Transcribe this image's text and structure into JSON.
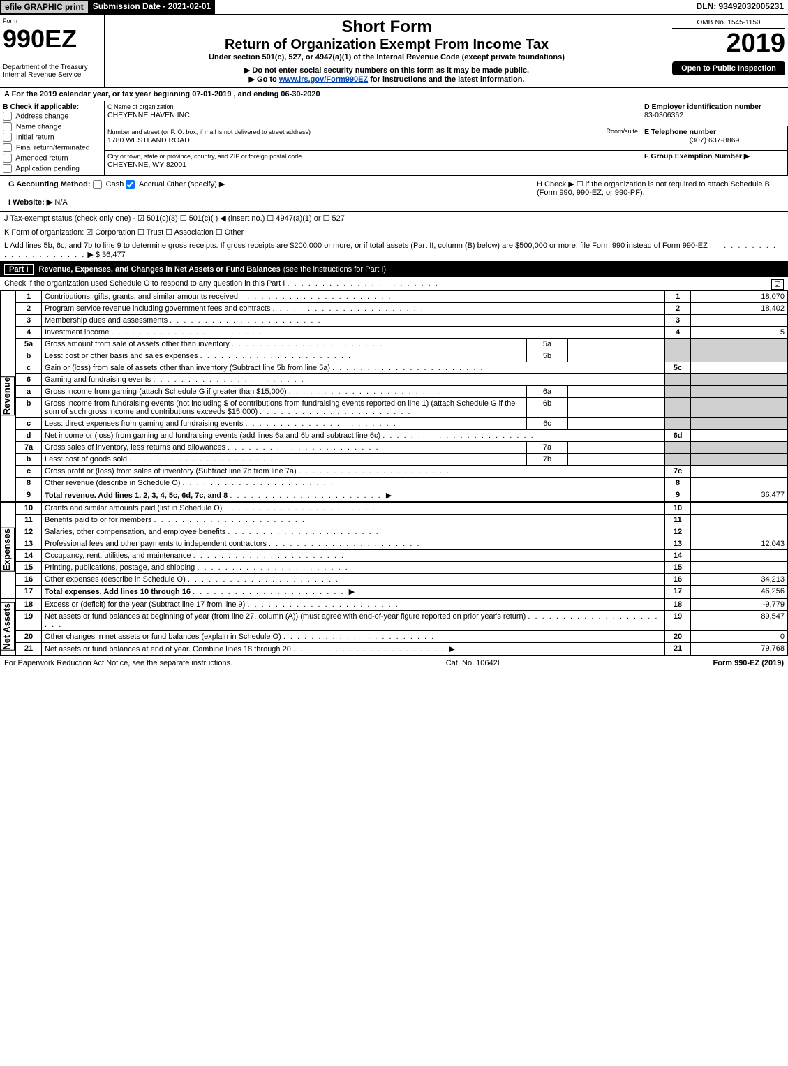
{
  "topbar": {
    "efile": "efile GRAPHIC print",
    "submission": "Submission Date - 2021-02-01",
    "dln": "DLN: 93492032005231"
  },
  "header": {
    "form_word": "Form",
    "form_number": "990EZ",
    "dept": "Department of the Treasury",
    "irs": "Internal Revenue Service",
    "title1": "Short Form",
    "title2": "Return of Organization Exempt From Income Tax",
    "subtitle": "Under section 501(c), 527, or 4947(a)(1) of the Internal Revenue Code (except private foundations)",
    "note1": "▶ Do not enter social security numbers on this form as it may be made public.",
    "note2_pre": "▶ Go to ",
    "note2_link": "www.irs.gov/Form990EZ",
    "note2_post": " for instructions and the latest information.",
    "omb": "OMB No. 1545-1150",
    "year": "2019",
    "open_public": "Open to Public Inspection"
  },
  "section_a": {
    "label": "A For the 2019 calendar year, or tax year beginning 07-01-2019 , and ending 06-30-2020"
  },
  "section_b": {
    "label": "B Check if applicable:",
    "items": [
      "Address change",
      "Name change",
      "Initial return",
      "Final return/terminated",
      "Amended return",
      "Application pending"
    ]
  },
  "section_c": {
    "name_label": "C Name of organization",
    "name": "CHEYENNE HAVEN INC",
    "addr_label": "Number and street (or P. O. box, if mail is not delivered to street address)",
    "room_label": "Room/suite",
    "addr": "1780 WESTLAND ROAD",
    "city_label": "City or town, state or province, country, and ZIP or foreign postal code",
    "city": "CHEYENNE, WY  82001"
  },
  "section_d": {
    "label": "D Employer identification number",
    "value": "83-0306362"
  },
  "section_e": {
    "label": "E Telephone number",
    "value": "(307) 637-8869"
  },
  "section_f": {
    "label": "F Group Exemption Number  ▶",
    "value": ""
  },
  "section_g": {
    "label": "G Accounting Method:",
    "cash": "Cash",
    "accrual": "Accrual",
    "other": "Other (specify) ▶"
  },
  "section_h": {
    "text": "H  Check ▶  ☐  if the organization is not required to attach Schedule B (Form 990, 990-EZ, or 990-PF)."
  },
  "section_i": {
    "label": "I Website: ▶",
    "value": "N/A"
  },
  "section_j": {
    "label": "J Tax-exempt status (check only one) - ☑ 501(c)(3) ☐ 501(c)(  ) ◀ (insert no.) ☐ 4947(a)(1) or ☐ 527"
  },
  "section_k": {
    "label": "K Form of organization:  ☑ Corporation  ☐ Trust  ☐ Association  ☐ Other"
  },
  "section_l": {
    "text": "L Add lines 5b, 6c, and 7b to line 9 to determine gross receipts. If gross receipts are $200,000 or more, or if total assets (Part II, column (B) below) are $500,000 or more, file Form 990 instead of Form 990-EZ",
    "amount_label": "▶ $",
    "amount": " 36,477"
  },
  "part1": {
    "tag": "Part I",
    "title": "Revenue, Expenses, and Changes in Net Assets or Fund Balances",
    "subtitle": "(see the instructions for Part I)",
    "check_line": "Check if the organization used Schedule O to respond to any question in this Part I",
    "check_mark": "☑",
    "sections": {
      "revenue": "Revenue",
      "expenses": "Expenses",
      "netassets": "Net Assets"
    },
    "lines": [
      {
        "n": "1",
        "text": "Contributions, gifts, grants, and similar amounts received",
        "rn": "1",
        "amt": "18,070"
      },
      {
        "n": "2",
        "text": "Program service revenue including government fees and contracts",
        "rn": "2",
        "amt": "18,402"
      },
      {
        "n": "3",
        "text": "Membership dues and assessments",
        "rn": "3",
        "amt": ""
      },
      {
        "n": "4",
        "text": "Investment income",
        "rn": "4",
        "amt": "5"
      },
      {
        "n": "5a",
        "text": "Gross amount from sale of assets other than inventory",
        "sub": "5a",
        "subamt": "",
        "shade": true
      },
      {
        "n": "b",
        "text": "Less: cost or other basis and sales expenses",
        "sub": "5b",
        "subamt": "",
        "shade": true
      },
      {
        "n": "c",
        "text": "Gain or (loss) from sale of assets other than inventory (Subtract line 5b from line 5a)",
        "rn": "5c",
        "amt": ""
      },
      {
        "n": "6",
        "text": "Gaming and fundraising events",
        "shade_full": true
      },
      {
        "n": "a",
        "text": "Gross income from gaming (attach Schedule G if greater than $15,000)",
        "sub": "6a",
        "subamt": "",
        "shade": true
      },
      {
        "n": "b",
        "text": "Gross income from fundraising events (not including $                of contributions from fundraising events reported on line 1) (attach Schedule G if the sum of such gross income and contributions exceeds $15,000)",
        "sub": "6b",
        "subamt": "",
        "shade": true
      },
      {
        "n": "c",
        "text": "Less: direct expenses from gaming and fundraising events",
        "sub": "6c",
        "subamt": "",
        "shade": true
      },
      {
        "n": "d",
        "text": "Net income or (loss) from gaming and fundraising events (add lines 6a and 6b and subtract line 6c)",
        "rn": "6d",
        "amt": ""
      },
      {
        "n": "7a",
        "text": "Gross sales of inventory, less returns and allowances",
        "sub": "7a",
        "subamt": "",
        "shade": true
      },
      {
        "n": "b",
        "text": "Less: cost of goods sold",
        "sub": "7b",
        "subamt": "",
        "shade": true
      },
      {
        "n": "c",
        "text": "Gross profit or (loss) from sales of inventory (Subtract line 7b from line 7a)",
        "rn": "7c",
        "amt": ""
      },
      {
        "n": "8",
        "text": "Other revenue (describe in Schedule O)",
        "rn": "8",
        "amt": ""
      },
      {
        "n": "9",
        "text": "Total revenue. Add lines 1, 2, 3, 4, 5c, 6d, 7c, and 8",
        "rn": "9",
        "amt": "36,477",
        "bold": true,
        "arrow": true
      }
    ],
    "exp_lines": [
      {
        "n": "10",
        "text": "Grants and similar amounts paid (list in Schedule O)",
        "rn": "10",
        "amt": ""
      },
      {
        "n": "11",
        "text": "Benefits paid to or for members",
        "rn": "11",
        "amt": ""
      },
      {
        "n": "12",
        "text": "Salaries, other compensation, and employee benefits",
        "rn": "12",
        "amt": ""
      },
      {
        "n": "13",
        "text": "Professional fees and other payments to independent contractors",
        "rn": "13",
        "amt": "12,043"
      },
      {
        "n": "14",
        "text": "Occupancy, rent, utilities, and maintenance",
        "rn": "14",
        "amt": ""
      },
      {
        "n": "15",
        "text": "Printing, publications, postage, and shipping",
        "rn": "15",
        "amt": ""
      },
      {
        "n": "16",
        "text": "Other expenses (describe in Schedule O)",
        "rn": "16",
        "amt": "34,213"
      },
      {
        "n": "17",
        "text": "Total expenses. Add lines 10 through 16",
        "rn": "17",
        "amt": "46,256",
        "bold": true,
        "arrow": true
      }
    ],
    "na_lines": [
      {
        "n": "18",
        "text": "Excess or (deficit) for the year (Subtract line 17 from line 9)",
        "rn": "18",
        "amt": "-9,779"
      },
      {
        "n": "19",
        "text": "Net assets or fund balances at beginning of year (from line 27, column (A)) (must agree with end-of-year figure reported on prior year's return)",
        "rn": "19",
        "amt": "89,547"
      },
      {
        "n": "20",
        "text": "Other changes in net assets or fund balances (explain in Schedule O)",
        "rn": "20",
        "amt": "0"
      },
      {
        "n": "21",
        "text": "Net assets or fund balances at end of year. Combine lines 18 through 20",
        "rn": "21",
        "amt": "79,768",
        "arrow": true
      }
    ]
  },
  "footer": {
    "left": "For Paperwork Reduction Act Notice, see the separate instructions.",
    "center": "Cat. No. 10642I",
    "right": "Form 990-EZ (2019)"
  },
  "colors": {
    "black": "#000000",
    "white": "#ffffff",
    "shade": "#d0d0d0",
    "link": "#0645ad"
  }
}
